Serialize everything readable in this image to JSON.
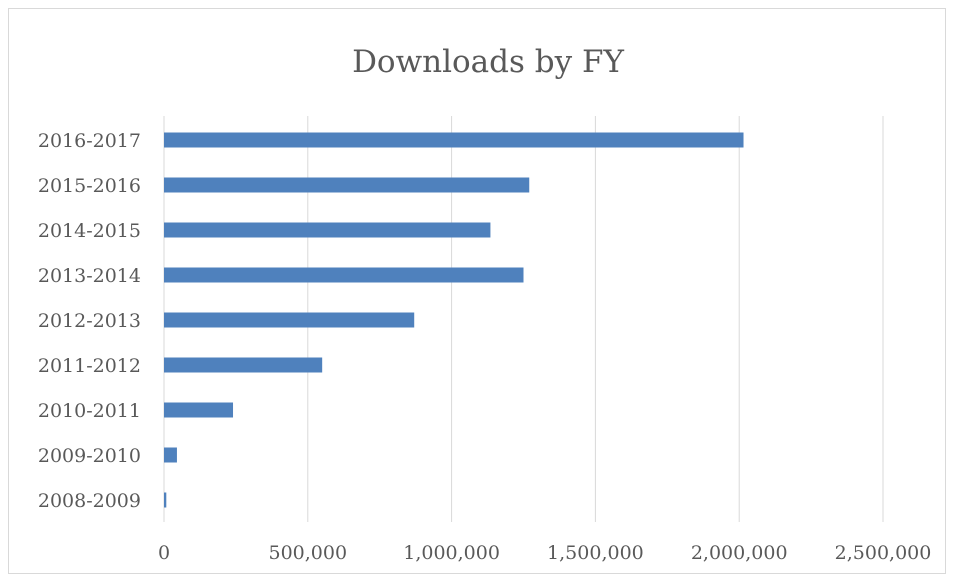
{
  "chart_data": {
    "type": "bar",
    "orientation": "horizontal",
    "title": "Downloads by FY",
    "xlabel": "",
    "ylabel": "",
    "categories": [
      "2016-2017",
      "2015-2016",
      "2014-2015",
      "2013-2014",
      "2012-2013",
      "2011-2012",
      "2010-2011",
      "2009-2010",
      "2008-2009"
    ],
    "values": [
      2015000,
      1270000,
      1135000,
      1250000,
      870000,
      550000,
      240000,
      45000,
      8000
    ],
    "xlim": [
      0,
      2500000
    ],
    "xticks": [
      0,
      500000,
      1000000,
      1500000,
      2000000,
      2500000
    ],
    "xtick_labels": [
      "0",
      "500,000",
      "1,000,000",
      "1,500,000",
      "2,000,000",
      "2,500,000"
    ],
    "grid": true,
    "legend": "none",
    "bar_color": "#4f81bd",
    "grid_color": "#d9d9d9"
  }
}
